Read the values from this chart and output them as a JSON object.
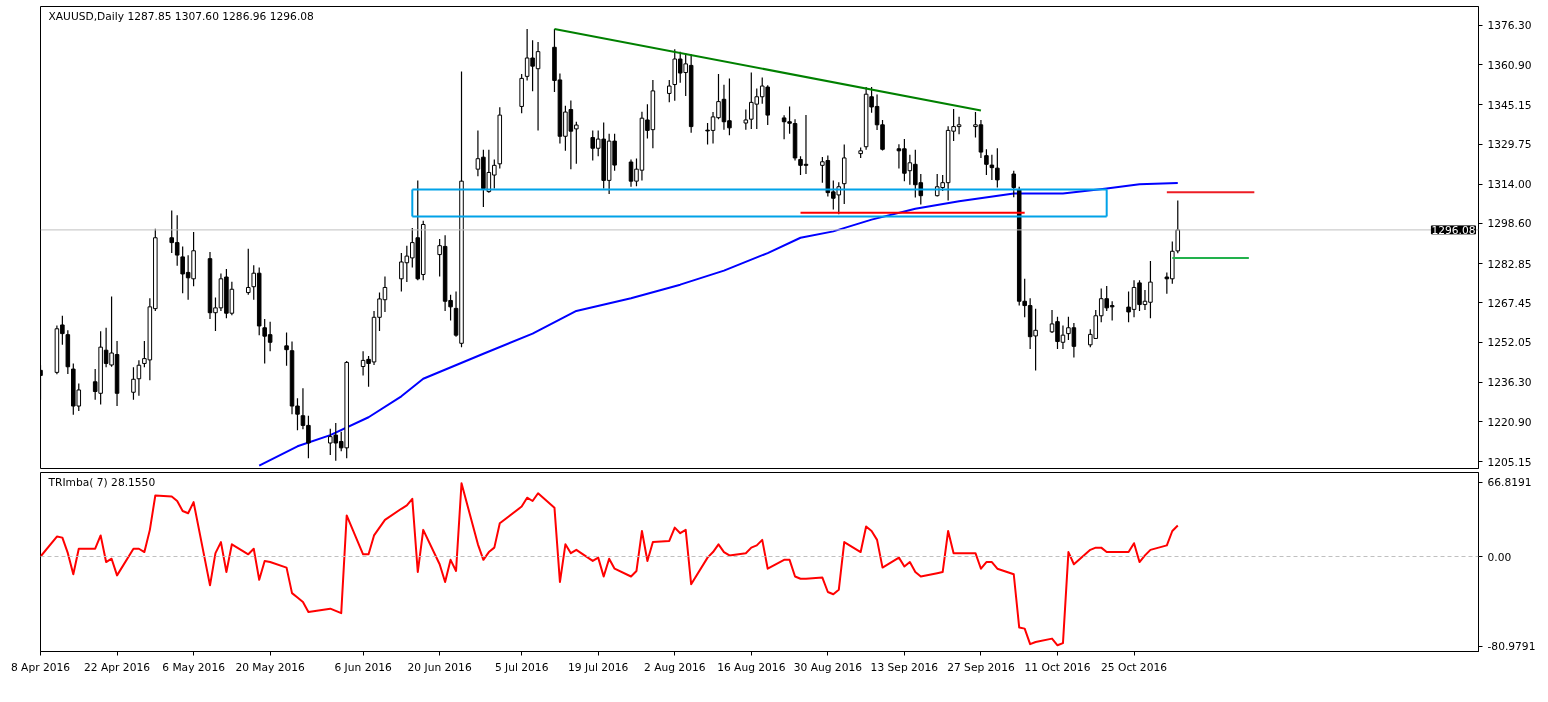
{
  "chart_data": [
    {
      "type": "candlestick",
      "title": "XAUUSD,Daily 1287.85 1307.60 1286.96 1296.08",
      "x": [
        "2016-04-08",
        "2016-04-11",
        "2016-04-12",
        "2016-04-13",
        "2016-04-14",
        "2016-04-15",
        "2016-04-18",
        "2016-04-19",
        "2016-04-20",
        "2016-04-21",
        "2016-04-22",
        "2016-04-25",
        "2016-04-26",
        "2016-04-27",
        "2016-04-28",
        "2016-04-29",
        "2016-05-02",
        "2016-05-03",
        "2016-05-04",
        "2016-05-05",
        "2016-05-06",
        "2016-05-09",
        "2016-05-10",
        "2016-05-11",
        "2016-05-12",
        "2016-05-13",
        "2016-05-16",
        "2016-05-17",
        "2016-05-18",
        "2016-05-19",
        "2016-05-20",
        "2016-05-23",
        "2016-05-24",
        "2016-05-25",
        "2016-05-26",
        "2016-05-27",
        "2016-05-31",
        "2016-06-01",
        "2016-06-02",
        "2016-06-03",
        "2016-06-06",
        "2016-06-07",
        "2016-06-08",
        "2016-06-09",
        "2016-06-10",
        "2016-06-13",
        "2016-06-14",
        "2016-06-15",
        "2016-06-16",
        "2016-06-17",
        "2016-06-20",
        "2016-06-21",
        "2016-06-22",
        "2016-06-23",
        "2016-06-24",
        "2016-06-27",
        "2016-06-28",
        "2016-06-29",
        "2016-06-30",
        "2016-07-01",
        "2016-07-05",
        "2016-07-06",
        "2016-07-07",
        "2016-07-08",
        "2016-07-11",
        "2016-07-12",
        "2016-07-13",
        "2016-07-14",
        "2016-07-15",
        "2016-07-18",
        "2016-07-19",
        "2016-07-20",
        "2016-07-21",
        "2016-07-22",
        "2016-07-25",
        "2016-07-26",
        "2016-07-27",
        "2016-07-28",
        "2016-07-29",
        "2016-08-01",
        "2016-08-02",
        "2016-08-03",
        "2016-08-04",
        "2016-08-05",
        "2016-08-08",
        "2016-08-09",
        "2016-08-10",
        "2016-08-11",
        "2016-08-12",
        "2016-08-15",
        "2016-08-16",
        "2016-08-17",
        "2016-08-18",
        "2016-08-19",
        "2016-08-22",
        "2016-08-23",
        "2016-08-24",
        "2016-08-25",
        "2016-08-26",
        "2016-08-29",
        "2016-08-30",
        "2016-08-31",
        "2016-09-01",
        "2016-09-02",
        "2016-09-05",
        "2016-09-06",
        "2016-09-07",
        "2016-09-08",
        "2016-09-09",
        "2016-09-12",
        "2016-09-13",
        "2016-09-14",
        "2016-09-15",
        "2016-09-16",
        "2016-09-19",
        "2016-09-20",
        "2016-09-21",
        "2016-09-22",
        "2016-09-23",
        "2016-09-26",
        "2016-09-27",
        "2016-09-28",
        "2016-09-29",
        "2016-09-30",
        "2016-10-03",
        "2016-10-04",
        "2016-10-05",
        "2016-10-06",
        "2016-10-07",
        "2016-10-10",
        "2016-10-11",
        "2016-10-12",
        "2016-10-13",
        "2016-10-14",
        "2016-10-17",
        "2016-10-18",
        "2016-10-19",
        "2016-10-20",
        "2016-10-21",
        "2016-10-24",
        "2016-10-25",
        "2016-10-26",
        "2016-10-27",
        "2016-10-28",
        "2016-10-31",
        "2016-11-01",
        "2016-11-02"
      ],
      "ohlc": [
        [
          1241.0,
          1243.0,
          1229.5,
          1239.0
        ],
        [
          1240.2,
          1258.6,
          1239.5,
          1257.3
        ],
        [
          1258.8,
          1262.4,
          1251.0,
          1255.4
        ],
        [
          1255.0,
          1256.7,
          1239.6,
          1242.4
        ],
        [
          1241.5,
          1243.7,
          1223.6,
          1227.0
        ],
        [
          1227.0,
          1235.8,
          1225.1,
          1233.3
        ],
        [
          1236.5,
          1241.5,
          1229.5,
          1232.7
        ],
        [
          1232.0,
          1256.3,
          1227.6,
          1250.1
        ],
        [
          1248.9,
          1257.7,
          1242.2,
          1243.7
        ],
        [
          1243.1,
          1270.0,
          1242.4,
          1247.8
        ],
        [
          1247.2,
          1252.5,
          1227.0,
          1232.0
        ],
        [
          1232.4,
          1242.2,
          1229.5,
          1237.5
        ],
        [
          1237.7,
          1245.0,
          1231.0,
          1243.0
        ],
        [
          1243.7,
          1252.5,
          1242.2,
          1245.6
        ],
        [
          1245.1,
          1269.3,
          1237.1,
          1265.9
        ],
        [
          1265.2,
          1296.5,
          1264.3,
          1293.0
        ],
        [
          1293.0,
          1303.7,
          1287.0,
          1291.1
        ],
        [
          1291.1,
          1301.8,
          1282.0,
          1286.2
        ],
        [
          1285.5,
          1289.6,
          1271.2,
          1278.8
        ],
        [
          1279.4,
          1286.1,
          1268.7,
          1277.3
        ],
        [
          1276.9,
          1295.3,
          1274.0,
          1287.9
        ],
        [
          1284.8,
          1287.4,
          1261.1,
          1263.6
        ],
        [
          1263.6,
          1269.6,
          1256.4,
          1265.5
        ],
        [
          1265.5,
          1279.0,
          1264.3,
          1276.9
        ],
        [
          1277.6,
          1280.7,
          1261.4,
          1263.4
        ],
        [
          1263.4,
          1275.7,
          1262.6,
          1272.8
        ],
        [
          1271.5,
          1288.7,
          1270.6,
          1273.5
        ],
        [
          1273.8,
          1282.2,
          1268.7,
          1279.1
        ],
        [
          1279.1,
          1281.3,
          1254.8,
          1258.4
        ],
        [
          1257.7,
          1261.1,
          1243.7,
          1254.4
        ],
        [
          1255.0,
          1260.1,
          1248.5,
          1252.0
        ],
        [
          1250.6,
          1255.8,
          1242.8,
          1249.1
        ],
        [
          1248.7,
          1252.3,
          1223.8,
          1227.0
        ],
        [
          1227.0,
          1230.1,
          1217.5,
          1223.8
        ],
        [
          1223.2,
          1234.0,
          1217.9,
          1219.4
        ],
        [
          1219.4,
          1223.2,
          1206.5,
          1212.5
        ],
        [
          1212.5,
          1218.1,
          1207.8,
          1215.0
        ],
        [
          1215.6,
          1220.3,
          1205.5,
          1212.5
        ],
        [
          1213.1,
          1216.9,
          1209.3,
          1210.6
        ],
        [
          1210.6,
          1244.7,
          1206.5,
          1244.1
        ],
        [
          1242.5,
          1248.5,
          1239.0,
          1244.9
        ],
        [
          1245.3,
          1246.6,
          1234.6,
          1243.7
        ],
        [
          1244.3,
          1264.3,
          1243.1,
          1261.8
        ],
        [
          1261.8,
          1271.5,
          1256.4,
          1269.0
        ],
        [
          1268.7,
          1277.8,
          1263.9,
          1273.5
        ],
        [
          1276.9,
          1287.0,
          1271.9,
          1283.5
        ],
        [
          1283.2,
          1289.9,
          1275.6,
          1285.8
        ],
        [
          1285.1,
          1296.8,
          1281.3,
          1291.1
        ],
        [
          1293.0,
          1315.5,
          1276.3,
          1276.9
        ],
        [
          1278.6,
          1299.7,
          1276.3,
          1298.2
        ],
        [
          1286.4,
          1292.5,
          1277.8,
          1289.9
        ],
        [
          1289.6,
          1294.0,
          1264.3,
          1268.1
        ],
        [
          1268.4,
          1270.6,
          1260.5,
          1265.9
        ],
        [
          1265.3,
          1271.9,
          1254.2,
          1254.8
        ],
        [
          1251.6,
          1358.2,
          1250.1,
          1315.2
        ],
        [
          1319.9,
          1335.1,
          1317.1,
          1324.0
        ],
        [
          1324.6,
          1327.5,
          1305.1,
          1312.3
        ],
        [
          1311.1,
          1327.5,
          1310.7,
          1318.6
        ],
        [
          1317.6,
          1323.7,
          1312.3,
          1321.4
        ],
        [
          1322.0,
          1344.2,
          1320.2,
          1341.1
        ],
        [
          1344.5,
          1357.2,
          1341.8,
          1355.5
        ],
        [
          1356.3,
          1374.9,
          1354.7,
          1363.5
        ],
        [
          1363.5,
          1370.5,
          1350.5,
          1360.3
        ],
        [
          1359.3,
          1369.8,
          1335.1,
          1366.0
        ],
        [
          1367.7,
          1374.9,
          1350.2,
          1354.7
        ],
        [
          1354.9,
          1357.4,
          1330.0,
          1332.8
        ],
        [
          1332.8,
          1344.8,
          1327.1,
          1342.3
        ],
        [
          1343.3,
          1346.8,
          1319.9,
          1334.8
        ],
        [
          1335.7,
          1338.5,
          1322.0,
          1337.2
        ],
        [
          1332.3,
          1335.1,
          1323.3,
          1328.1
        ],
        [
          1328.1,
          1335.1,
          1325.0,
          1331.7
        ],
        [
          1331.7,
          1338.2,
          1312.3,
          1315.5
        ],
        [
          1315.5,
          1333.8,
          1310.2,
          1330.9
        ],
        [
          1330.9,
          1333.8,
          1319.3,
          1321.5
        ],
        [
          1322.7,
          1323.7,
          1313.0,
          1315.2
        ],
        [
          1315.2,
          1324.1,
          1313.2,
          1319.9
        ],
        [
          1319.5,
          1342.4,
          1315.5,
          1339.9
        ],
        [
          1339.2,
          1345.4,
          1331.9,
          1335.1
        ],
        [
          1335.4,
          1354.9,
          1328.1,
          1350.6
        ],
        [
          1349.6,
          1354.9,
          1346.1,
          1352.5
        ],
        [
          1353.1,
          1366.9,
          1346.7,
          1363.1
        ],
        [
          1363.1,
          1366.0,
          1353.8,
          1357.6
        ],
        [
          1357.8,
          1365.4,
          1348.6,
          1361.2
        ],
        [
          1360.6,
          1365.0,
          1334.2,
          1336.6
        ],
        [
          1335.2,
          1338.0,
          1329.6,
          1334.9
        ],
        [
          1335.1,
          1342.3,
          1330.0,
          1340.4
        ],
        [
          1340.1,
          1357.2,
          1339.5,
          1346.4
        ],
        [
          1347.3,
          1353.0,
          1335.4,
          1338.5
        ],
        [
          1338.9,
          1355.5,
          1333.2,
          1336.1
        ],
        [
          1338.0,
          1343.3,
          1335.4,
          1339.2
        ],
        [
          1339.5,
          1357.8,
          1335.7,
          1346.1
        ],
        [
          1345.4,
          1351.5,
          1335.7,
          1348.3
        ],
        [
          1348.3,
          1355.9,
          1345.6,
          1352.5
        ],
        [
          1352.1,
          1352.8,
          1337.2,
          1341.1
        ],
        [
          1340.0,
          1341.0,
          1331.6,
          1338.5
        ],
        [
          1338.5,
          1344.5,
          1333.8,
          1337.9
        ],
        [
          1337.8,
          1339.5,
          1323.3,
          1324.3
        ],
        [
          1323.7,
          1325.0,
          1317.6,
          1321.4
        ],
        [
          1321.8,
          1341.1,
          1318.0,
          1321.4
        ],
        [
          1321.4,
          1324.7,
          1314.6,
          1322.8
        ],
        [
          1323.3,
          1325.3,
          1309.2,
          1310.7
        ],
        [
          1311.0,
          1315.5,
          1304.1,
          1308.5
        ],
        [
          1309.8,
          1314.8,
          1302.2,
          1313.0
        ],
        [
          1314.2,
          1329.6,
          1306.2,
          1324.3
        ],
        [
          1326.0,
          1328.4,
          1324.3,
          1327.1
        ],
        [
          1328.7,
          1352.1,
          1327.5,
          1349.3
        ],
        [
          1348.3,
          1352.1,
          1342.0,
          1344.3
        ],
        [
          1344.5,
          1349.2,
          1335.3,
          1337.3
        ],
        [
          1337.3,
          1339.2,
          1327.2,
          1327.7
        ],
        [
          1327.9,
          1329.7,
          1320.2,
          1327.1
        ],
        [
          1327.9,
          1331.7,
          1315.2,
          1318.3
        ],
        [
          1319.3,
          1325.6,
          1313.8,
          1322.4
        ],
        [
          1321.8,
          1327.5,
          1308.8,
          1313.8
        ],
        [
          1314.6,
          1318.0,
          1306.0,
          1309.5
        ],
        [
          1309.5,
          1318.0,
          1309.2,
          1313.0
        ],
        [
          1312.7,
          1317.6,
          1311.3,
          1314.6
        ],
        [
          1314.6,
          1336.7,
          1307.6,
          1335.1
        ],
        [
          1334.8,
          1343.5,
          1330.9,
          1336.6
        ],
        [
          1336.6,
          1340.5,
          1333.6,
          1337.3
        ],
        [
          1336.6,
          1342.3,
          1332.3,
          1337.3
        ],
        [
          1337.3,
          1339.2,
          1324.3,
          1326.6
        ],
        [
          1325.2,
          1327.7,
          1317.6,
          1321.8
        ],
        [
          1321.5,
          1325.6,
          1315.7,
          1320.5
        ],
        [
          1320.3,
          1328.1,
          1312.7,
          1315.7
        ],
        [
          1318.0,
          1319.3,
          1308.9,
          1312.7
        ],
        [
          1311.7,
          1313.0,
          1266.4,
          1268.1
        ],
        [
          1268.1,
          1276.9,
          1261.8,
          1266.4
        ],
        [
          1266.4,
          1269.3,
          1249.4,
          1254.2
        ],
        [
          1254.5,
          1265.2,
          1240.9,
          1256.7
        ],
        [
          1256.1,
          1264.7,
          1255.6,
          1259.2
        ],
        [
          1260.1,
          1262.0,
          1249.4,
          1252.3
        ],
        [
          1252.0,
          1258.6,
          1249.4,
          1254.8
        ],
        [
          1255.4,
          1262.0,
          1252.9,
          1257.7
        ],
        [
          1257.7,
          1259.6,
          1246.0,
          1250.4
        ],
        [
          1251.0,
          1257.1,
          1250.1,
          1255.1
        ],
        [
          1253.5,
          1264.7,
          1253.4,
          1262.4
        ],
        [
          1262.4,
          1273.1,
          1259.9,
          1269.1
        ],
        [
          1269.1,
          1274.1,
          1264.3,
          1265.5
        ],
        [
          1266.4,
          1268.1,
          1260.5,
          1265.9
        ],
        [
          1265.8,
          1271.9,
          1259.9,
          1263.9
        ],
        [
          1264.9,
          1276.3,
          1261.8,
          1273.5
        ],
        [
          1275.3,
          1276.3,
          1264.3,
          1266.8
        ],
        [
          1266.8,
          1272.5,
          1264.7,
          1268.1
        ],
        [
          1267.7,
          1283.9,
          1261.4,
          1275.6
        ],
        [
          1277.6,
          1279.4,
          1271.0,
          1276.9
        ],
        [
          1276.9,
          1291.5,
          1275.0,
          1287.7
        ],
        [
          1287.85,
          1307.6,
          1286.96,
          1296.08
        ]
      ],
      "series": [
        {
          "type": "line",
          "color": "#0000ff",
          "x": [
            "2016-05-18",
            "2016-05-25",
            "2016-05-31",
            "2016-06-07",
            "2016-06-13",
            "2016-06-17",
            "2016-06-28",
            "2016-07-07",
            "2016-07-15",
            "2016-07-25",
            "2016-08-03",
            "2016-08-11",
            "2016-08-19",
            "2016-08-25",
            "2016-08-31",
            "2016-09-07",
            "2016-09-15",
            "2016-09-23",
            "2016-10-03",
            "2016-10-12",
            "2016-10-20",
            "2016-10-26",
            "2016-11-02"
          ],
          "values": [
            1203.6,
            1211.2,
            1215.6,
            1222.6,
            1230.8,
            1237.7,
            1247.5,
            1255.4,
            1264.3,
            1269.3,
            1274.6,
            1280.1,
            1287.0,
            1293.0,
            1295.5,
            1300.1,
            1304.4,
            1307.3,
            1310.4,
            1310.4,
            1312.3,
            1314.0,
            1314.5
          ]
        },
        {
          "type": "line",
          "color": "#008000",
          "x": [
            "2016-07-11",
            "2016-09-27"
          ],
          "values": [
            1374.9,
            1342.9
          ]
        },
        {
          "type": "line",
          "color": "#ff0000",
          "x": [
            "2016-08-25",
            "2016-10-05"
          ],
          "values": [
            1302.8,
            1302.8
          ]
        },
        {
          "type": "line",
          "color": "#ed1c24",
          "x": [
            "2016-10-31",
            "2016-11-16"
          ],
          "values": [
            1310.8,
            1310.8
          ]
        },
        {
          "type": "line",
          "color": "#22b14c",
          "x": [
            "2016-11-01",
            "2016-11-15"
          ],
          "values": [
            1285.1,
            1285.1
          ]
        },
        {
          "type": "line",
          "color": "#00a2e8",
          "x": [
            "2016-06-15",
            "2016-10-20"
          ],
          "values": [
            1311.9,
            1311.9
          ]
        },
        {
          "type": "line",
          "color": "#00a2e8",
          "x": [
            "2016-06-15",
            "2016-10-20"
          ],
          "values": [
            1301.3,
            1301.3
          ]
        },
        {
          "type": "line",
          "color": "#00a2e8",
          "x": [
            "2016-06-15",
            "2016-06-15"
          ],
          "values": [
            1301.3,
            1311.9
          ]
        },
        {
          "type": "line",
          "color": "#00a2e8",
          "x": [
            "2016-10-20",
            "2016-10-20"
          ],
          "values": [
            1301.3,
            1311.9
          ]
        }
      ],
      "xlim": [
        "2016-04-08",
        "2016-12-27"
      ],
      "ylim": [
        1202.5,
        1383.7
      ],
      "yticks": [
        {
          "value": 1376.3,
          "label": "1376.30"
        },
        {
          "value": 1360.9,
          "label": "1360.90"
        },
        {
          "value": 1345.15,
          "label": "1345.15"
        },
        {
          "value": 1329.75,
          "label": "1329.75"
        },
        {
          "value": 1314.0,
          "label": "1314.00"
        },
        {
          "value": 1298.6,
          "label": "1298.60"
        },
        {
          "value": 1282.85,
          "label": "1282.85"
        },
        {
          "value": 1267.45,
          "label": "1267.45"
        },
        {
          "value": 1252.05,
          "label": "1252.05"
        },
        {
          "value": 1236.3,
          "label": "1236.30"
        },
        {
          "value": 1220.9,
          "label": "1220.90"
        },
        {
          "value": 1205.15,
          "label": "1205.15"
        }
      ],
      "ref_lines": [
        {
          "axis": "y",
          "value": 1296.08,
          "label": "1296.08",
          "color": "#c0c0c0"
        }
      ],
      "tick_labels": "y"
    },
    {
      "type": "line",
      "title": "TRImba( 7) 28.1550",
      "x": [
        "2016-04-08",
        "2016-04-11",
        "2016-04-12",
        "2016-04-13",
        "2016-04-14",
        "2016-04-15",
        "2016-04-18",
        "2016-04-19",
        "2016-04-20",
        "2016-04-21",
        "2016-04-22",
        "2016-04-25",
        "2016-04-26",
        "2016-04-27",
        "2016-04-28",
        "2016-04-29",
        "2016-05-02",
        "2016-05-03",
        "2016-05-04",
        "2016-05-05",
        "2016-05-06",
        "2016-05-09",
        "2016-05-10",
        "2016-05-11",
        "2016-05-12",
        "2016-05-13",
        "2016-05-16",
        "2016-05-17",
        "2016-05-18",
        "2016-05-19",
        "2016-05-20",
        "2016-05-23",
        "2016-05-24",
        "2016-05-25",
        "2016-05-26",
        "2016-05-27",
        "2016-05-31",
        "2016-06-01",
        "2016-06-02",
        "2016-06-03",
        "2016-06-06",
        "2016-06-07",
        "2016-06-08",
        "2016-06-09",
        "2016-06-10",
        "2016-06-13",
        "2016-06-14",
        "2016-06-15",
        "2016-06-16",
        "2016-06-17",
        "2016-06-20",
        "2016-06-21",
        "2016-06-22",
        "2016-06-23",
        "2016-06-24",
        "2016-06-27",
        "2016-06-28",
        "2016-06-29",
        "2016-06-30",
        "2016-07-01",
        "2016-07-05",
        "2016-07-06",
        "2016-07-07",
        "2016-07-08",
        "2016-07-11",
        "2016-07-12",
        "2016-07-13",
        "2016-07-14",
        "2016-07-15",
        "2016-07-18",
        "2016-07-19",
        "2016-07-20",
        "2016-07-21",
        "2016-07-22",
        "2016-07-25",
        "2016-07-26",
        "2016-07-27",
        "2016-07-28",
        "2016-07-29",
        "2016-08-01",
        "2016-08-02",
        "2016-08-03",
        "2016-08-04",
        "2016-08-05",
        "2016-08-08",
        "2016-08-09",
        "2016-08-10",
        "2016-08-11",
        "2016-08-12",
        "2016-08-15",
        "2016-08-16",
        "2016-08-17",
        "2016-08-18",
        "2016-08-19",
        "2016-08-22",
        "2016-08-23",
        "2016-08-24",
        "2016-08-25",
        "2016-08-26",
        "2016-08-29",
        "2016-08-30",
        "2016-08-31",
        "2016-09-01",
        "2016-09-02",
        "2016-09-05",
        "2016-09-06",
        "2016-09-07",
        "2016-09-08",
        "2016-09-09",
        "2016-09-12",
        "2016-09-13",
        "2016-09-14",
        "2016-09-15",
        "2016-09-16",
        "2016-09-19",
        "2016-09-20",
        "2016-09-21",
        "2016-09-22",
        "2016-09-23",
        "2016-09-26",
        "2016-09-27",
        "2016-09-28",
        "2016-09-29",
        "2016-09-30",
        "2016-10-03",
        "2016-10-04",
        "2016-10-05",
        "2016-10-06",
        "2016-10-07",
        "2016-10-10",
        "2016-10-11",
        "2016-10-12",
        "2016-10-13",
        "2016-10-14",
        "2016-10-17",
        "2016-10-18",
        "2016-10-19",
        "2016-10-20",
        "2016-10-21",
        "2016-10-24",
        "2016-10-25",
        "2016-10-26",
        "2016-10-27",
        "2016-10-28",
        "2016-10-31",
        "2016-11-01",
        "2016-11-02"
      ],
      "series": [
        {
          "color": "#ff0000",
          "values": [
            0,
            18,
            17,
            3,
            -16,
            7,
            7,
            19,
            -5,
            -2,
            -17,
            7,
            7,
            4,
            24,
            55,
            54,
            50,
            41,
            39,
            49,
            -26,
            3,
            13,
            -14,
            11,
            2,
            7,
            -21,
            -4,
            -5,
            -10,
            -33,
            -37,
            -41,
            -50,
            -47,
            -49,
            -51,
            37,
            2,
            2,
            19,
            26,
            33,
            43,
            46,
            52,
            -14,
            24,
            -7,
            -23,
            -3,
            -13,
            66,
            11,
            -3,
            4,
            8,
            30,
            45,
            53,
            50,
            57,
            44,
            -23,
            11,
            3,
            6,
            -4,
            -1,
            -18,
            -2,
            -11,
            -18,
            -13,
            23,
            -4,
            13,
            14,
            26,
            21,
            24,
            -25,
            -1,
            4,
            11,
            4,
            1,
            3,
            8,
            10,
            15,
            -11,
            -3,
            -3,
            -18,
            -20,
            -20,
            -19,
            -32,
            -34,
            -30,
            13,
            4,
            27,
            23,
            15,
            -10,
            -1,
            -9,
            -5,
            -14,
            -18,
            -15,
            -14,
            23,
            3,
            3,
            3,
            -11,
            -5,
            -5,
            -11,
            -16,
            -64,
            -65,
            -79,
            -77,
            -74,
            -80,
            -78,
            4,
            -7,
            6,
            8,
            8,
            4,
            4,
            4,
            12,
            -5,
            1,
            6,
            10,
            23,
            28
          ]
        }
      ],
      "xlim": [
        "2016-04-08",
        "2016-12-27"
      ],
      "ylim": [
        -85.6,
        75.7
      ],
      "yticks": [
        66.8191,
        {
          "value": 0,
          "label": "0.00"
        },
        -80.9791
      ],
      "xticks": [
        {
          "value": "2016-04-08",
          "label": "8 Apr 2016"
        },
        {
          "value": "2016-04-22",
          "label": "22 Apr 2016"
        },
        {
          "value": "2016-05-06",
          "label": "6 May 2016"
        },
        {
          "value": "2016-05-20",
          "label": "20 May 2016"
        },
        {
          "value": "2016-06-06",
          "label": "6 Jun 2016"
        },
        {
          "value": "2016-06-20",
          "label": "20 Jun 2016"
        },
        {
          "value": "2016-07-05",
          "label": "5 Jul 2016"
        },
        {
          "value": "2016-07-19",
          "label": "19 Jul 2016"
        },
        {
          "value": "2016-08-02",
          "label": "2 Aug 2016"
        },
        {
          "value": "2016-08-16",
          "label": "16 Aug 2016"
        },
        {
          "value": "2016-08-30",
          "label": "30 Aug 2016"
        },
        {
          "value": "2016-09-13",
          "label": "13 Sep 2016"
        },
        {
          "value": "2016-09-27",
          "label": "27 Sep 2016"
        },
        {
          "value": "2016-10-11",
          "label": "11 Oct 2016"
        },
        {
          "value": "2016-10-25",
          "label": "25 Oct 2016"
        }
      ],
      "ref_lines": [
        {
          "axis": "y",
          "value": 0,
          "color": "#c0c0c0",
          "line_style": "dashed"
        }
      ]
    }
  ]
}
